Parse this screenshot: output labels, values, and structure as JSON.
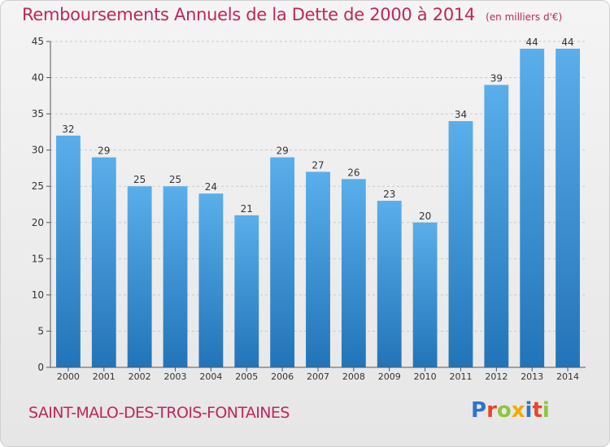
{
  "header": {
    "title": "Remboursements Annuels de la Dette de 2000 à 2014",
    "subtitle": "(en milliers d'€)"
  },
  "footer": {
    "commune": "SAINT-MALO-DES-TROIS-FONTAINES",
    "logo_text": "Proxiti",
    "logo_colors": [
      "#2e75c9",
      "#e8452c",
      "#8cc63f",
      "#f2a900",
      "#2e75c9",
      "#e8452c",
      "#8cc63f"
    ]
  },
  "colors": {
    "title": "#c0265a",
    "bar_top": "#5aaeea",
    "bar_bottom": "#2274b8",
    "grid": "#c8c8c8",
    "axis": "#555555"
  },
  "chart_data": {
    "type": "bar",
    "title": "Remboursements Annuels de la Dette de 2000 à 2014",
    "subtitle": "(en milliers d'€)",
    "categories": [
      "2000",
      "2001",
      "2002",
      "2003",
      "2004",
      "2005",
      "2006",
      "2007",
      "2008",
      "2009",
      "2010",
      "2011",
      "2012",
      "2013",
      "2014"
    ],
    "values": [
      32,
      29,
      25,
      25,
      24,
      21,
      29,
      27,
      26,
      23,
      20,
      34,
      39,
      44,
      44
    ],
    "ylim": [
      0,
      45
    ],
    "yticks": [
      0,
      5,
      10,
      15,
      20,
      25,
      30,
      35,
      40,
      45
    ],
    "grid": true,
    "data_labels": true,
    "xlabel": "",
    "ylabel": ""
  }
}
